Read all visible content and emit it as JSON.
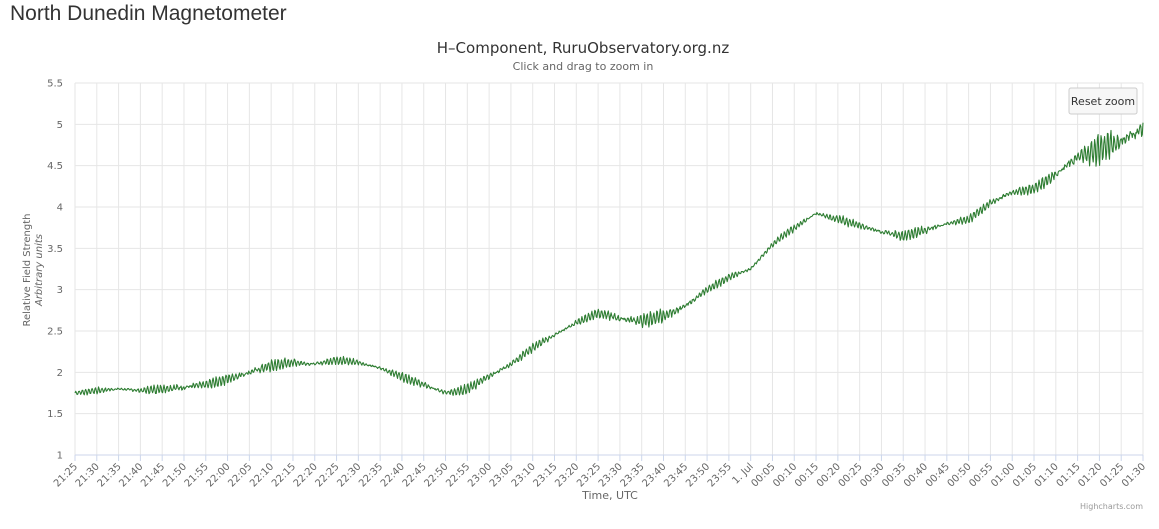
{
  "page": {
    "title": "North Dunedin Magnetometer"
  },
  "reset_zoom_label": "Reset zoom",
  "credits": "Highcharts.com",
  "colors": {
    "series": "#2e7d32",
    "grid": "#e6e6e6",
    "text": "#666666",
    "title": "#333333"
  },
  "chart_data": {
    "type": "line",
    "title": "H–Component, RuruObservatory.org.nz",
    "subtitle": "Click and drag to zoom in",
    "xlabel": "Time, UTC",
    "ylabel": "Relative Field Strength",
    "ylabel_sub": "Arbitrary units",
    "ylim": [
      1,
      5.5
    ],
    "yticks": [
      1,
      1.5,
      2,
      2.5,
      3,
      3.5,
      4,
      4.5,
      5,
      5.5
    ],
    "xrange_minutes": [
      0,
      245
    ],
    "xtick_labels": [
      "21:25",
      "21:30",
      "21:35",
      "21:40",
      "21:45",
      "21:50",
      "21:55",
      "22:00",
      "22:05",
      "22:10",
      "22:15",
      "22:20",
      "22:25",
      "22:30",
      "22:35",
      "22:40",
      "22:45",
      "22:50",
      "22:55",
      "23:00",
      "23:05",
      "23:10",
      "23:15",
      "23:20",
      "23:25",
      "23:30",
      "23:35",
      "23:40",
      "23:45",
      "23:50",
      "23:55",
      "1. Jul",
      "00:05",
      "00:10",
      "00:15",
      "00:20",
      "00:25",
      "00:30",
      "00:35",
      "00:40",
      "00:45",
      "00:50",
      "00:55",
      "01:00",
      "01:05",
      "01:10",
      "01:15",
      "01:20",
      "01:25",
      "01:30"
    ],
    "grid": true,
    "series": [
      {
        "x": [
          0,
          5,
          10,
          15,
          20,
          25,
          30,
          35,
          40,
          45,
          50,
          55,
          60,
          65,
          70,
          75,
          80,
          85,
          90,
          95,
          100,
          105,
          110,
          115,
          120,
          125,
          130,
          135,
          140,
          145,
          150,
          155,
          160,
          165,
          170,
          175,
          180,
          185,
          190,
          195,
          200,
          205,
          210,
          215,
          220,
          225,
          230,
          235,
          240,
          245
        ],
        "values": [
          1.75,
          1.78,
          1.8,
          1.78,
          1.8,
          1.82,
          1.85,
          1.92,
          2.0,
          2.08,
          2.12,
          2.1,
          2.15,
          2.12,
          2.05,
          1.95,
          1.85,
          1.75,
          1.8,
          1.95,
          2.1,
          2.3,
          2.45,
          2.6,
          2.72,
          2.65,
          2.62,
          2.68,
          2.8,
          3.0,
          3.15,
          3.25,
          3.55,
          3.75,
          3.92,
          3.85,
          3.78,
          3.7,
          3.65,
          3.72,
          3.8,
          3.85,
          4.05,
          4.18,
          4.22,
          4.4,
          4.6,
          4.7,
          4.8,
          4.95
        ],
        "noise_amplitude": [
          0.03,
          0.04,
          0.03,
          0.03,
          0.06,
          0.08,
          0.06,
          0.07,
          0.08,
          0.07,
          0.06,
          0.05,
          0.05,
          0.04,
          0.04,
          0.05,
          0.05,
          0.06,
          0.06,
          0.05,
          0.05,
          0.05,
          0.04,
          0.05,
          0.05,
          0.08,
          0.1,
          0.08,
          0.06,
          0.05,
          0.04,
          0.04,
          0.04,
          0.05,
          0.05,
          0.05,
          0.05,
          0.05,
          0.06,
          0.06,
          0.05,
          0.05,
          0.06,
          0.06,
          0.06,
          0.1,
          0.14,
          0.18,
          0.18,
          0.16
        ]
      }
    ]
  }
}
